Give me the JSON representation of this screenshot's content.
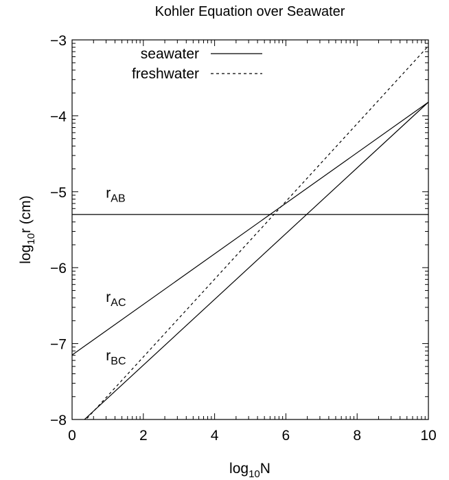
{
  "chart_data": {
    "type": "line",
    "title": "Kohler Equation over Seawater",
    "xlabel": {
      "base": "log",
      "sub": "10",
      "rest": "N"
    },
    "ylabel": {
      "base": "log",
      "sub": "10",
      "rest": "r (cm)"
    },
    "xlim": [
      0,
      10
    ],
    "ylim": [
      -8,
      -3
    ],
    "xticks": [
      0,
      2,
      4,
      6,
      8,
      10
    ],
    "xtick_labels": [
      "0",
      "2",
      "4",
      "6",
      "8",
      "10"
    ],
    "yticks": [
      -8,
      -7,
      -6,
      -5,
      -4,
      -3
    ],
    "ytick_labels": [
      "−8",
      "−7",
      "−6",
      "−5",
      "−4",
      "−3"
    ],
    "legend_position": "top-left",
    "series": [
      {
        "name": "seawater",
        "style": "solid",
        "segments": [
          {
            "x": [
              0,
              10
            ],
            "y": [
              -5.3,
              -5.3
            ]
          },
          {
            "x": [
              0,
              10
            ],
            "y": [
              -7.15,
              -3.82
            ]
          },
          {
            "x": [
              0,
              10
            ],
            "y": [
              -8.15,
              -3.82
            ]
          }
        ]
      },
      {
        "name": "freshwater",
        "style": "dashed",
        "segments": [
          {
            "x": [
              0,
              10
            ],
            "y": [
              -8.2,
              -3.08
            ]
          }
        ]
      }
    ],
    "annotations": [
      {
        "base": "r",
        "sub": "AB",
        "x": 0.95,
        "y": -5.08
      },
      {
        "base": "r",
        "sub": "AC",
        "x": 0.95,
        "y": -6.45
      },
      {
        "base": "r",
        "sub": "BC",
        "x": 0.95,
        "y": -7.22
      }
    ]
  }
}
